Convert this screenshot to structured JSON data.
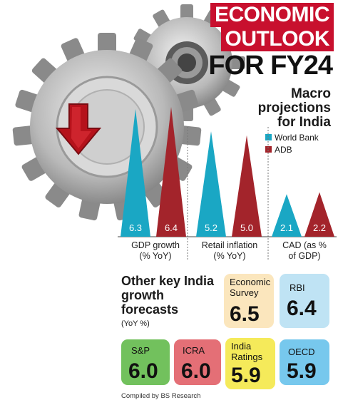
{
  "header": {
    "title_line1": "ECONOMIC",
    "title_line2": "OUTLOOK",
    "title_line3": "FOR FY24"
  },
  "macro": {
    "title": "Macro projections for India",
    "legend": [
      {
        "label": "World Bank",
        "color": "#1aa7c4"
      },
      {
        "label": "ADB",
        "color": "#a3242b"
      }
    ]
  },
  "chart_data": {
    "type": "bar",
    "title": "Macro projections for India",
    "categories": [
      "GDP growth (% YoY)",
      "Retail inflation (% YoY)",
      "CAD (as % of GDP)"
    ],
    "series": [
      {
        "name": "World Bank",
        "values": [
          6.3,
          5.2,
          2.1
        ],
        "labels": [
          "6.3",
          "5.2",
          "2.1"
        ]
      },
      {
        "name": "ADB",
        "values": [
          6.4,
          5.0,
          2.2
        ],
        "labels": [
          "6.4",
          "5.0",
          "2.2"
        ]
      }
    ],
    "ylim": [
      0,
      6.4
    ],
    "bar_shape": "triangle",
    "grid": false
  },
  "chart_labels": {
    "gdp": [
      "GDP growth",
      "(% YoY)"
    ],
    "inflation": [
      "Retail inflation",
      "(% YoY)"
    ],
    "cad": [
      "CAD (as %",
      "of GDP)"
    ]
  },
  "other": {
    "title": "Other key India growth forecasts",
    "unit": "(YoY %)",
    "forecasts": [
      {
        "name": "Economic Survey",
        "value": "6.5",
        "color": "#fbe6bd"
      },
      {
        "name": "RBI",
        "value": "6.4",
        "color": "#bfe3f4"
      },
      {
        "name": "S&P",
        "value": "6.0",
        "color": "#72c15d"
      },
      {
        "name": "ICRA",
        "value": "6.0",
        "color": "#e46f76"
      },
      {
        "name": "India Ratings",
        "value": "5.9",
        "color": "#f5ea5a"
      },
      {
        "name": "OECD",
        "value": "5.9",
        "color": "#77c8ed"
      }
    ]
  },
  "footer": {
    "credit": "Compiled by BS Research"
  }
}
